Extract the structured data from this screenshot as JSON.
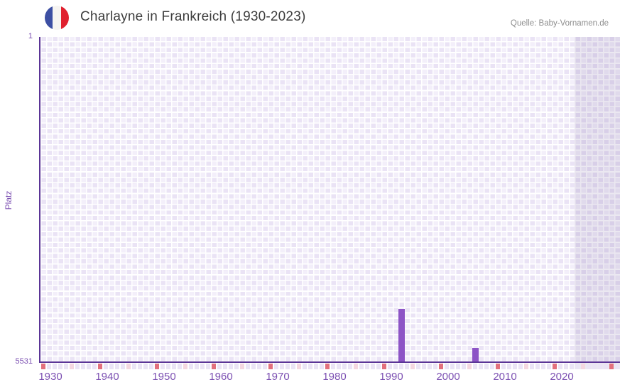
{
  "header": {
    "title": "Charlayne in Frankreich (1930-2023)",
    "flag_icon": "france-flag-icon",
    "source": "Quelle: Baby-Vornamen.de"
  },
  "chart_data": {
    "type": "bar",
    "title": "Charlayne in Frankreich (1930-2023)",
    "ylabel": "Platz",
    "xlabel": "",
    "grid": true,
    "y_axis": {
      "top_label": "1",
      "bottom_label": "5531",
      "min": 1,
      "max": 5531,
      "direction": "inverted (rank 1 at top, bars rise from bottom)"
    },
    "x_axis": {
      "start_year": 1929,
      "end_year": 2030,
      "tick_years": [
        1930,
        1940,
        1950,
        1960,
        1970,
        1980,
        1990,
        2000,
        2010,
        2020
      ]
    },
    "bars": [
      {
        "year": 1992,
        "platz": 4625
      },
      {
        "year": 2005,
        "platz": 5290
      }
    ],
    "future_band": {
      "from_year": 2023,
      "to_year": 2030
    },
    "axis_strip": {
      "dark_years": [
        1929,
        1939,
        1949,
        1959,
        1969,
        1979,
        1989,
        1999,
        2009,
        2019,
        2029
      ],
      "light_years": [
        1934,
        1944,
        1954,
        1964,
        1974,
        1984,
        1994,
        2004,
        2014,
        2024
      ]
    },
    "colors": {
      "bar": "#8d54c6",
      "axis": "#5b3596",
      "axis-label": "#7c50b2",
      "tick-label": "#7c50b2",
      "title": "#3d3d3d",
      "source": "#8e8e8e",
      "cell-light": "#f3effa",
      "cell-dark": "#eae3f5",
      "grid-line": "#ffffff",
      "strip-default": "#eae4f5",
      "pink-dark": "#e2707d",
      "pink-light": "#f4d7e0",
      "band": "rgba(99,78,143,0.13)",
      "flag-blue": "#3d4fa3",
      "flag-white": "#f6f4f1",
      "flag-red": "#e0202e"
    }
  }
}
